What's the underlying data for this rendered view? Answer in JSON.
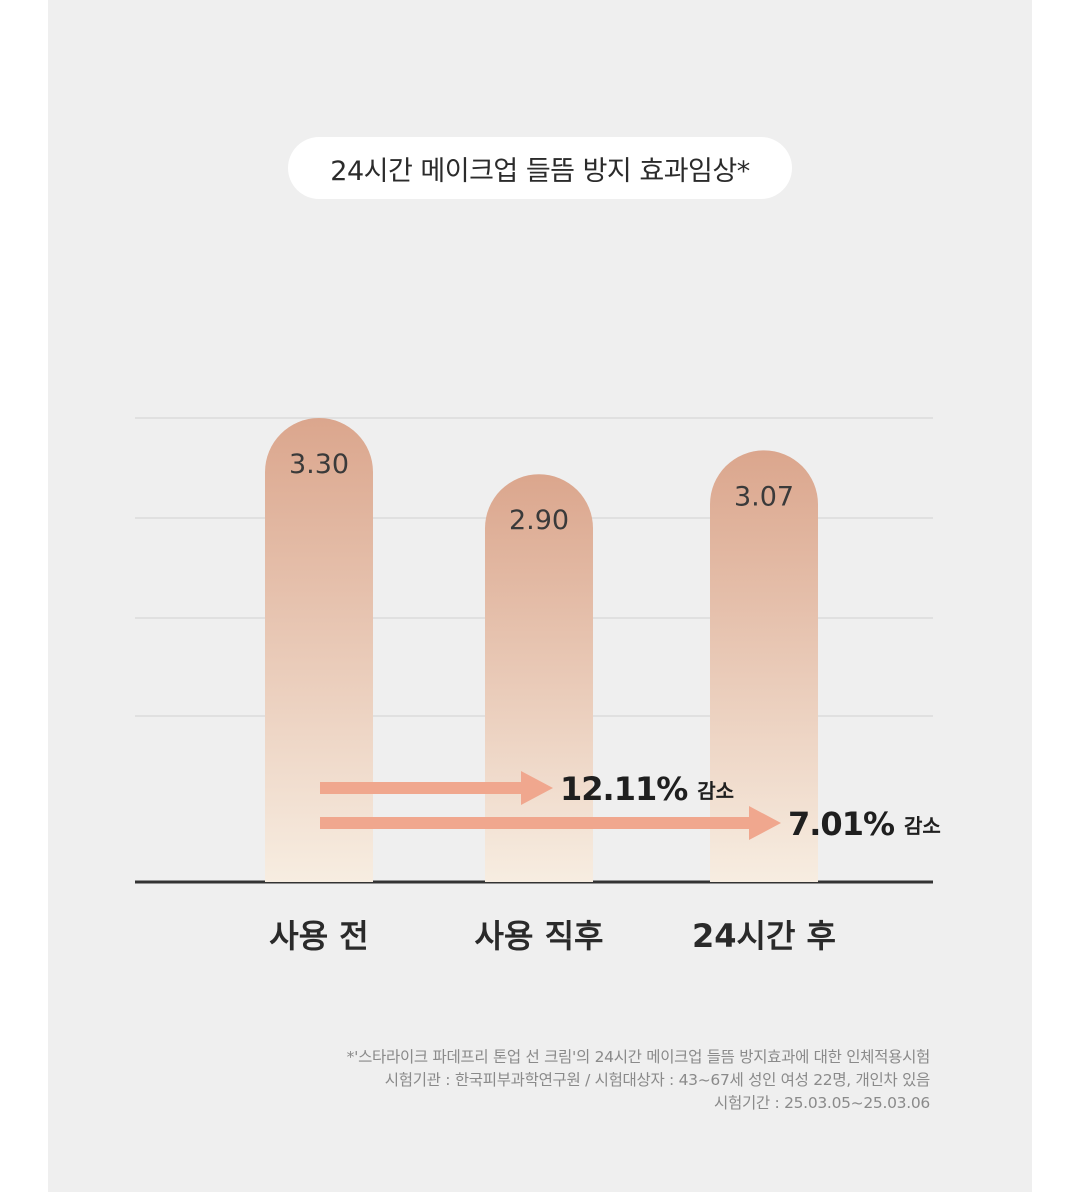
{
  "title": "24시간 메이크업 들뜸 방지 효과임상*",
  "chart_data": {
    "type": "bar",
    "categories": [
      "사용 전",
      "사용 직후",
      "24시간 후"
    ],
    "values": [
      3.3,
      2.9,
      3.07
    ],
    "value_labels": [
      "3.30",
      "2.90",
      "3.07"
    ],
    "title": "24시간 메이크업 들뜸 방지 효과임상*",
    "xlabel": "",
    "ylabel": "",
    "ylim": [
      0,
      3.5
    ],
    "grid": true,
    "annotations": [
      {
        "from_category": "사용 전",
        "to_category": "사용 직후",
        "value": "12.11%",
        "suffix": "감소"
      },
      {
        "from_category": "사용 전",
        "to_category": "24시간 후",
        "value": "7.01%",
        "suffix": "감소"
      }
    ],
    "colors": {
      "bar_top": "#dba68d",
      "bar_bottom": "#f7ede1",
      "arrow": "#f0a78e",
      "baseline": "#333333",
      "grid": "#d6d6d6"
    }
  },
  "footnote": {
    "line1": "*'스타라이크 파데프리 톤업 선 크림'의 24시간 메이크업 들뜸 방지효과에 대한 인체적용시험",
    "line2": "시험기관 : 한국피부과학연구원 / 시험대상자 : 43~67세 성인 여성 22명, 개인차 있음",
    "line3": "시험기간 : 25.03.05~25.03.06"
  }
}
